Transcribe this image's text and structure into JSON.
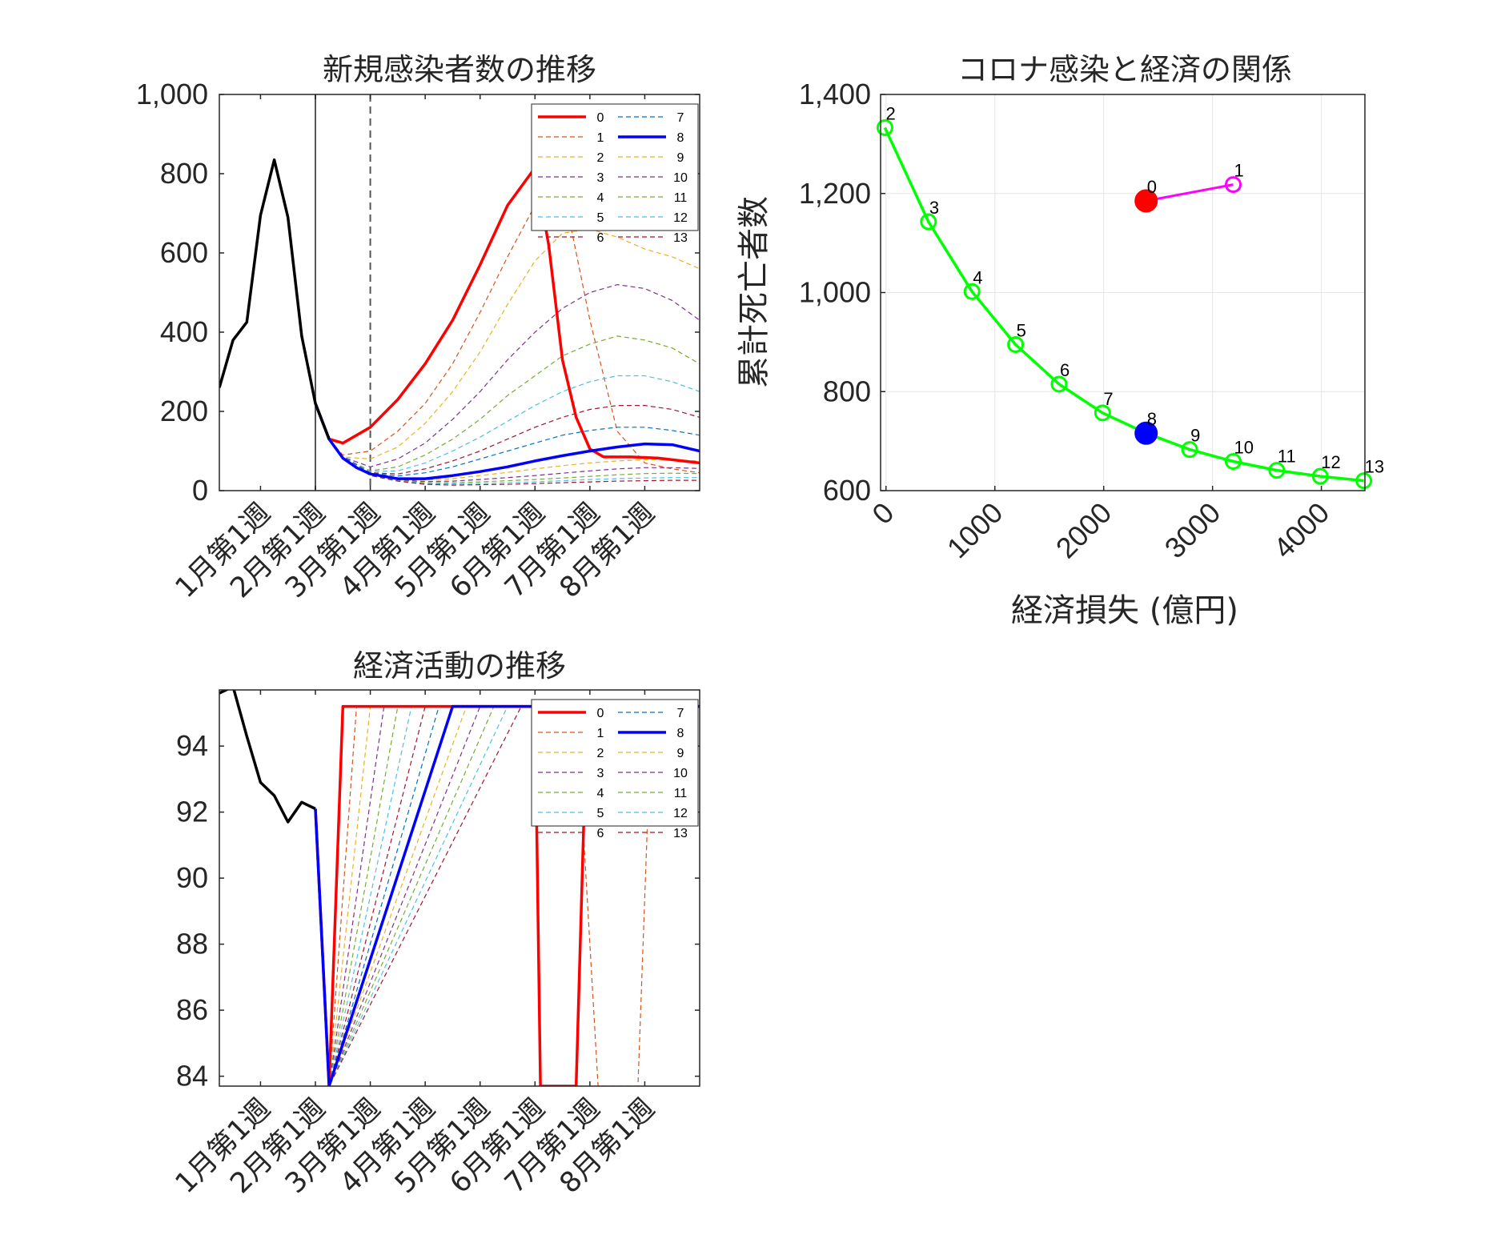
{
  "colors": {
    "baseline": "#FF0000",
    "optimal": "#0000FF",
    "history": "#000000",
    "frontier": "#00FF00",
    "special": "#FF00FF",
    "palette": [
      "#FF0000",
      "#D95319",
      "#EDB120",
      "#7E2F8E",
      "#77AC30",
      "#4DBEEE",
      "#A2142F",
      "#0072BD",
      "#0000FF",
      "#EDB120",
      "#7E2F8E",
      "#77AC30",
      "#4DBEEE",
      "#A2142F"
    ]
  },
  "legend": {
    "entries": [
      "0",
      "1",
      "2",
      "3",
      "4",
      "5",
      "6",
      "7",
      "8",
      "9",
      "10",
      "11",
      "12",
      "13"
    ],
    "bold": [
      "0",
      "8"
    ]
  },
  "chart_data": [
    {
      "id": "infections",
      "type": "line",
      "title": "新規感染者数の推移",
      "xlabel": "",
      "ylabel": "",
      "x_ticks": [
        "1月第1週",
        "2月第1週",
        "3月第1週",
        "4月第1週",
        "5月第1週",
        "6月第1週",
        "7月第1週",
        "8月第1週"
      ],
      "x_tick_weeks": [
        1,
        5,
        9,
        13,
        17,
        21,
        25,
        29
      ],
      "xlim": [
        -2,
        33
      ],
      "ylim": [
        0,
        1000
      ],
      "y_ticks": [
        "0",
        "200",
        "400",
        "600",
        "800",
        "1,000"
      ],
      "y_tick_values": [
        0,
        200,
        400,
        600,
        800,
        1000
      ],
      "vlines": [
        {
          "week": 5,
          "style": "solid"
        },
        {
          "week": 9,
          "style": "dashed"
        }
      ],
      "history": {
        "x": [
          -2,
          -1,
          0,
          1,
          2,
          3,
          4,
          5,
          6
        ],
        "y": [
          260,
          380,
          425,
          695,
          835,
          690,
          390,
          220,
          130
        ]
      },
      "series": [
        {
          "name": "0",
          "x": [
            5,
            6,
            7,
            9,
            11,
            13,
            15,
            17,
            19,
            21,
            22,
            23,
            24,
            25,
            26,
            28,
            30,
            33
          ],
          "y": [
            220,
            130,
            120,
            160,
            230,
            320,
            430,
            570,
            720,
            815,
            620,
            330,
            185,
            105,
            85,
            85,
            82,
            70
          ]
        },
        {
          "name": "1",
          "x": [
            5,
            6,
            7,
            9,
            11,
            13,
            15,
            17,
            19,
            21,
            23,
            25,
            27,
            29,
            31,
            33
          ],
          "y": [
            220,
            130,
            90,
            100,
            150,
            220,
            320,
            450,
            590,
            720,
            770,
            430,
            150,
            70,
            55,
            45
          ]
        },
        {
          "name": "2",
          "x": [
            5,
            6,
            7,
            9,
            11,
            13,
            15,
            17,
            19,
            21,
            23,
            25,
            27,
            29,
            31,
            33
          ],
          "y": [
            220,
            130,
            85,
            80,
            110,
            170,
            250,
            350,
            470,
            580,
            650,
            660,
            640,
            610,
            590,
            560
          ]
        },
        {
          "name": "3",
          "x": [
            5,
            6,
            7,
            9,
            11,
            13,
            15,
            17,
            19,
            21,
            23,
            25,
            27,
            29,
            31,
            33
          ],
          "y": [
            220,
            130,
            85,
            60,
            80,
            120,
            180,
            250,
            330,
            400,
            460,
            500,
            520,
            510,
            480,
            430
          ]
        },
        {
          "name": "4",
          "x": [
            5,
            6,
            7,
            9,
            11,
            13,
            15,
            17,
            19,
            21,
            23,
            25,
            27,
            29,
            31,
            33
          ],
          "y": [
            220,
            130,
            85,
            50,
            60,
            90,
            130,
            180,
            240,
            290,
            340,
            370,
            390,
            380,
            360,
            320
          ]
        },
        {
          "name": "5",
          "x": [
            5,
            6,
            7,
            9,
            11,
            13,
            15,
            17,
            19,
            21,
            23,
            25,
            27,
            29,
            31,
            33
          ],
          "y": [
            220,
            130,
            85,
            48,
            50,
            70,
            100,
            135,
            175,
            215,
            250,
            275,
            290,
            290,
            275,
            250
          ]
        },
        {
          "name": "6",
          "x": [
            5,
            6,
            7,
            9,
            11,
            13,
            15,
            17,
            19,
            21,
            23,
            25,
            27,
            29,
            31,
            33
          ],
          "y": [
            220,
            130,
            85,
            45,
            42,
            55,
            75,
            100,
            130,
            160,
            185,
            205,
            215,
            215,
            205,
            185
          ]
        },
        {
          "name": "7",
          "x": [
            5,
            6,
            7,
            9,
            11,
            13,
            15,
            17,
            19,
            21,
            23,
            25,
            27,
            29,
            31,
            33
          ],
          "y": [
            220,
            130,
            85,
            44,
            37,
            45,
            60,
            80,
            100,
            120,
            140,
            152,
            160,
            160,
            152,
            140
          ]
        },
        {
          "name": "8",
          "x": [
            5,
            6,
            7,
            8,
            9,
            11,
            13,
            15,
            17,
            19,
            21,
            23,
            25,
            27,
            29,
            31,
            33
          ],
          "y": [
            220,
            130,
            82,
            58,
            42,
            30,
            30,
            38,
            48,
            60,
            75,
            88,
            100,
            110,
            118,
            116,
            100
          ]
        },
        {
          "name": "9",
          "x": [
            5,
            6,
            7,
            9,
            11,
            13,
            15,
            17,
            19,
            21,
            23,
            25,
            27,
            29,
            31,
            33
          ],
          "y": [
            220,
            130,
            82,
            40,
            28,
            27,
            30,
            38,
            46,
            55,
            63,
            70,
            75,
            78,
            78,
            75
          ]
        },
        {
          "name": "10",
          "x": [
            5,
            6,
            7,
            9,
            11,
            13,
            15,
            17,
            19,
            21,
            23,
            25,
            27,
            29,
            31,
            33
          ],
          "y": [
            220,
            130,
            82,
            40,
            27,
            23,
            24,
            28,
            33,
            38,
            44,
            50,
            55,
            58,
            58,
            56
          ]
        },
        {
          "name": "11",
          "x": [
            5,
            6,
            7,
            9,
            11,
            13,
            15,
            17,
            19,
            21,
            23,
            25,
            27,
            29,
            31,
            33
          ],
          "y": [
            220,
            130,
            82,
            39,
            26,
            20,
            20,
            22,
            25,
            28,
            32,
            36,
            40,
            43,
            44,
            43
          ]
        },
        {
          "name": "12",
          "x": [
            5,
            6,
            7,
            9,
            11,
            13,
            15,
            17,
            19,
            21,
            23,
            25,
            27,
            29,
            31,
            33
          ],
          "y": [
            220,
            130,
            82,
            39,
            25,
            18,
            17,
            18,
            20,
            22,
            25,
            28,
            30,
            32,
            33,
            33
          ]
        },
        {
          "name": "13",
          "x": [
            5,
            6,
            7,
            9,
            11,
            13,
            15,
            17,
            19,
            21,
            23,
            25,
            27,
            29,
            31,
            33
          ],
          "y": [
            220,
            130,
            82,
            38,
            24,
            16,
            14,
            15,
            16,
            18,
            20,
            22,
            24,
            25,
            26,
            26
          ]
        }
      ]
    },
    {
      "id": "tradeoff",
      "type": "scatter",
      "title": "コロナ感染と経済の関係",
      "xlabel": "経済損失 (億円)",
      "ylabel": "累計死亡者数",
      "xlim": [
        -50,
        4400
      ],
      "ylim": [
        600,
        1400
      ],
      "x_ticks": [
        "0",
        "1000",
        "2000",
        "3000",
        "4000"
      ],
      "x_tick_values": [
        0,
        1000,
        2000,
        3000,
        4000
      ],
      "y_ticks": [
        "600",
        "800",
        "1,000",
        "1,200",
        "1,400"
      ],
      "y_tick_values": [
        600,
        800,
        1000,
        1200,
        1400
      ],
      "grid": true,
      "frontier": {
        "labels": [
          "2",
          "3",
          "4",
          "5",
          "6",
          "7",
          "8",
          "9",
          "10",
          "11",
          "12",
          "13"
        ],
        "x": [
          -10,
          390,
          790,
          1190,
          1590,
          1990,
          2390,
          2790,
          3190,
          3590,
          3990,
          4390
        ],
        "y": [
          1333,
          1143,
          1002,
          895,
          815,
          757,
          716,
          683,
          659,
          641,
          629,
          620
        ]
      },
      "special": {
        "labels": [
          "0",
          "1"
        ],
        "x": [
          2390,
          3190
        ],
        "y": [
          1185,
          1218
        ]
      },
      "highlight": {
        "baseline_label": "0",
        "optimal_label": "8"
      }
    },
    {
      "id": "economy",
      "type": "line",
      "title": "経済活動の推移",
      "xlabel": "",
      "ylabel": "",
      "x_ticks": [
        "1月第1週",
        "2月第1週",
        "3月第1週",
        "4月第1週",
        "5月第1週",
        "6月第1週",
        "7月第1週",
        "8月第1週"
      ],
      "x_tick_weeks": [
        1,
        5,
        9,
        13,
        17,
        21,
        25,
        29
      ],
      "xlim": [
        -2,
        33
      ],
      "ylim": [
        83.7,
        95.7
      ],
      "y_ticks": [
        "84",
        "86",
        "88",
        "90",
        "92",
        "94"
      ],
      "y_tick_values": [
        84,
        86,
        88,
        90,
        92,
        94
      ],
      "history": {
        "x": [
          -2,
          -1,
          0,
          1,
          2,
          3,
          4,
          5
        ],
        "y": [
          95.6,
          95.8,
          94.3,
          92.9,
          92.5,
          91.7,
          92.3,
          92.1
        ]
      },
      "series": [
        {
          "name": "0",
          "x": [
            5,
            6,
            7,
            33
          ],
          "y": [
            92.1,
            83.7,
            95.2,
            95.2
          ],
          "extra": [
            {
              "x": [
                21,
                21.4,
                24,
                24.8,
                33
              ],
              "y": [
                95.2,
                83.7,
                83.7,
                95.2,
                95.2
              ]
            }
          ]
        },
        {
          "name": "1",
          "x": [
            5,
            6,
            8,
            33
          ],
          "y": [
            92.1,
            83.7,
            95.2,
            95.2
          ],
          "extra": [
            {
              "x": [
                24,
                25.6,
                28.5,
                29.5,
                33
              ],
              "y": [
                95.2,
                83.7,
                83.7,
                95.2,
                95.2
              ]
            }
          ]
        },
        {
          "name": "2",
          "x": [
            5,
            6,
            9,
            33
          ],
          "y": [
            92.1,
            83.7,
            95.2,
            95.2
          ]
        },
        {
          "name": "3",
          "x": [
            5,
            6,
            10,
            33
          ],
          "y": [
            92.1,
            83.7,
            95.2,
            95.2
          ]
        },
        {
          "name": "4",
          "x": [
            5,
            6,
            11,
            33
          ],
          "y": [
            92.1,
            83.7,
            95.2,
            95.2
          ]
        },
        {
          "name": "5",
          "x": [
            5,
            6,
            12,
            33
          ],
          "y": [
            92.1,
            83.7,
            95.2,
            95.2
          ]
        },
        {
          "name": "6",
          "x": [
            5,
            6,
            13,
            33
          ],
          "y": [
            92.1,
            83.7,
            95.2,
            95.2
          ]
        },
        {
          "name": "7",
          "x": [
            5,
            6,
            14,
            33
          ],
          "y": [
            92.1,
            83.7,
            95.2,
            95.2
          ]
        },
        {
          "name": "8",
          "x": [
            5,
            6,
            15,
            33
          ],
          "y": [
            92.1,
            83.7,
            95.2,
            95.2
          ]
        },
        {
          "name": "9",
          "x": [
            5,
            6,
            16,
            33
          ],
          "y": [
            92.1,
            83.7,
            95.2,
            95.2
          ]
        },
        {
          "name": "10",
          "x": [
            5,
            6,
            17,
            33
          ],
          "y": [
            92.1,
            83.7,
            95.2,
            95.2
          ]
        },
        {
          "name": "11",
          "x": [
            5,
            6,
            18,
            33
          ],
          "y": [
            92.1,
            83.7,
            95.2,
            95.2
          ]
        },
        {
          "name": "12",
          "x": [
            5,
            6,
            19,
            33
          ],
          "y": [
            92.1,
            83.7,
            95.2,
            95.2
          ]
        },
        {
          "name": "13",
          "x": [
            5,
            6,
            20,
            33
          ],
          "y": [
            92.1,
            83.7,
            95.2,
            95.2
          ]
        }
      ]
    }
  ]
}
